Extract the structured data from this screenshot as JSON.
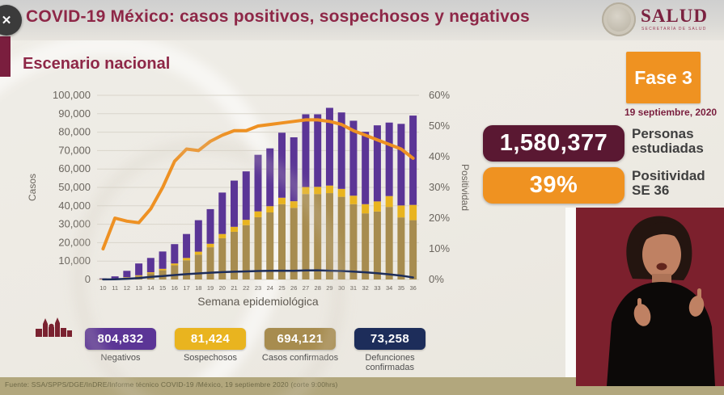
{
  "header": {
    "title": "COVID-19 México: casos positivos, sospechosos y negativos",
    "logo_text": "SALUD",
    "logo_subtext": "SECRETARÍA DE SALUD"
  },
  "overlay": {
    "close_glyph": "✕"
  },
  "slide": {
    "section_title": "Escenario nacional",
    "phase_badge": "Fase 3",
    "date": "19 septiembre, 2020",
    "stats": [
      {
        "value": "1,580,377",
        "label_line1": "Personas",
        "label_line2": "estudiadas"
      },
      {
        "value": "39%",
        "label_line1": "Positividad",
        "label_line2": "SE 36"
      }
    ],
    "legend": [
      {
        "value": "804,832",
        "label": "Negativos",
        "color": "#5b3596"
      },
      {
        "value": "81,424",
        "label": "Sospechosos",
        "color": "#e9b41f"
      },
      {
        "value": "694,121",
        "label": "Casos confirmados",
        "color": "#a78c4f"
      },
      {
        "value": "73,258",
        "label": "Defunciones confirmadas",
        "color": "#1d2d5a"
      }
    ],
    "source": "Fuente: SSA/SPPS/DGE/InDRE/Informe técnico COVID-19 /México, 19 septiembre 2020 (corte 9:00hrs)"
  },
  "chart_data": {
    "type": "bar",
    "subtype": "stacked-bars-with-lines",
    "title": "Escenario nacional",
    "xlabel": "Semana epidemiológica",
    "ylabel_left": "Casos",
    "ylabel_right": "Positividad",
    "ylim_left": [
      0,
      100000
    ],
    "ylim_right": [
      0,
      60
    ],
    "grid": true,
    "categories": [
      10,
      11,
      12,
      13,
      14,
      15,
      16,
      17,
      18,
      19,
      20,
      21,
      22,
      23,
      24,
      25,
      26,
      27,
      28,
      29,
      30,
      31,
      32,
      33,
      34,
      35,
      36
    ],
    "series": [
      {
        "name": "Casos confirmados",
        "type": "bar",
        "color": "#a78c4f",
        "values": [
          150,
          400,
          1000,
          1900,
          3300,
          5000,
          7700,
          10400,
          13500,
          17500,
          22400,
          25900,
          29500,
          33800,
          36400,
          40900,
          38900,
          46400,
          46400,
          46900,
          44900,
          40900,
          35900,
          36900,
          39400,
          33700,
          32200
        ]
      },
      {
        "name": "Sospechosos",
        "type": "bar",
        "color": "#e9b41f",
        "values": [
          50,
          100,
          250,
          400,
          600,
          800,
          1000,
          1300,
          1600,
          1900,
          2300,
          2700,
          2900,
          3200,
          3400,
          3500,
          3600,
          3800,
          3900,
          4100,
          4300,
          4600,
          5000,
          5500,
          5900,
          6500,
          8300
        ]
      },
      {
        "name": "Negativos",
        "type": "bar",
        "color": "#5b3596",
        "values": [
          400,
          1200,
          3450,
          6400,
          7800,
          9400,
          10500,
          13000,
          17100,
          18800,
          22500,
          25100,
          26300,
          30700,
          31400,
          35300,
          34700,
          39500,
          39400,
          42200,
          41500,
          40700,
          39300,
          41300,
          39900,
          44300,
          48500
        ]
      },
      {
        "name": "Defunciones confirmadas",
        "type": "line",
        "axis": "left",
        "color": "#1d2d5a",
        "values": [
          50,
          150,
          400,
          800,
          1400,
          1900,
          2400,
          2900,
          3300,
          3700,
          4000,
          4200,
          4400,
          4600,
          4700,
          4800,
          4700,
          4900,
          5000,
          4800,
          4600,
          4300,
          3900,
          3400,
          2800,
          2100,
          1100
        ]
      },
      {
        "name": "Positividad",
        "type": "line",
        "axis": "right",
        "color": "#ee9123",
        "values": [
          10,
          20,
          19,
          18.5,
          23,
          30,
          38.5,
          42.5,
          42,
          45,
          47,
          48.5,
          48.5,
          50,
          50.5,
          51,
          51.5,
          52,
          52,
          51.5,
          50.5,
          48.5,
          47,
          45.5,
          44,
          42.5,
          39.5
        ]
      }
    ],
    "legend_position": "bottom"
  }
}
